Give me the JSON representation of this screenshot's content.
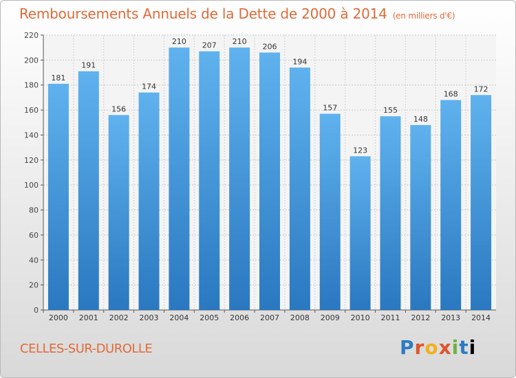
{
  "title": "Remboursements Annuels de la Dette de 2000 à 2014",
  "subtitle": "(en milliers d'€)",
  "town": "CELLES-SUR-DUROLLE",
  "logo": "Proxiti",
  "colors": {
    "bar": "#4a9fe0",
    "title": "#e06a3a"
  },
  "chart_data": {
    "type": "bar",
    "title": "Remboursements Annuels de la Dette de 2000 à 2014",
    "subtitle": "(en milliers d'€)",
    "xlabel": "",
    "ylabel": "",
    "categories": [
      "2000",
      "2001",
      "2002",
      "2003",
      "2004",
      "2005",
      "2006",
      "2007",
      "2008",
      "2009",
      "2010",
      "2011",
      "2012",
      "2013",
      "2014"
    ],
    "values": [
      181,
      191,
      156,
      174,
      210,
      207,
      210,
      206,
      194,
      157,
      123,
      155,
      148,
      168,
      172
    ],
    "ylim": [
      0,
      220
    ],
    "yticks": [
      0,
      20,
      40,
      60,
      80,
      100,
      120,
      140,
      160,
      180,
      200,
      220
    ],
    "grid": true,
    "data_labels": true
  }
}
